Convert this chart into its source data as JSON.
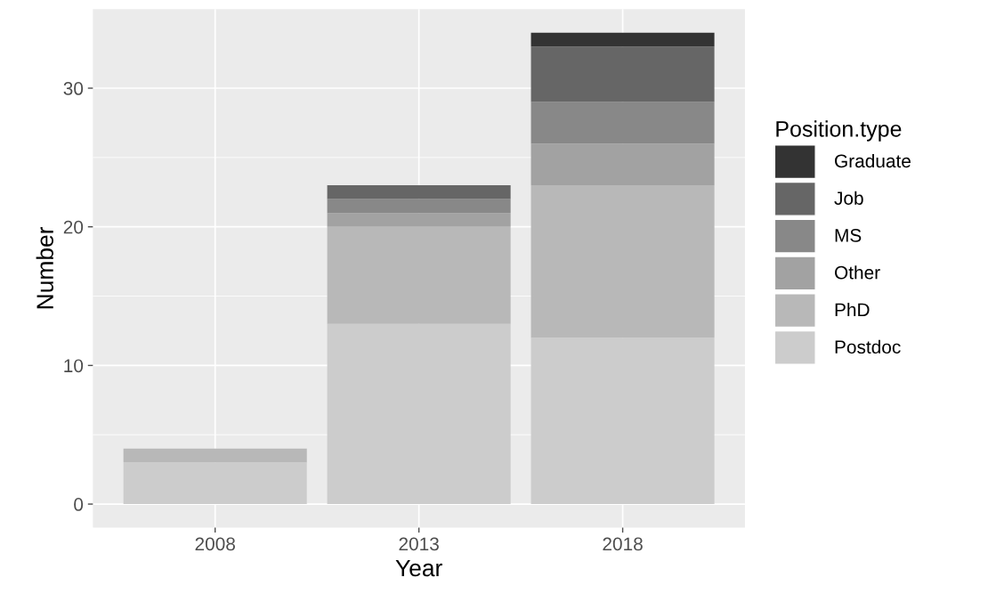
{
  "chart_data": {
    "type": "bar",
    "stacked": true,
    "xlabel": "Year",
    "ylabel": "Number",
    "legend_title": "Position.type",
    "legend": "right",
    "grid": true,
    "categories": [
      "2008",
      "2013",
      "2018"
    ],
    "series": [
      {
        "name": "Postdoc",
        "color": "#cccccc",
        "values": [
          3,
          13,
          12
        ]
      },
      {
        "name": "PhD",
        "color": "#b8b8b8",
        "values": [
          1,
          7,
          11
        ]
      },
      {
        "name": "Other",
        "color": "#a2a2a2",
        "values": [
          0,
          1,
          3
        ]
      },
      {
        "name": "MS",
        "color": "#888888",
        "values": [
          0,
          1,
          3
        ]
      },
      {
        "name": "Job",
        "color": "#666666",
        "values": [
          0,
          1,
          4
        ]
      },
      {
        "name": "Graduate",
        "color": "#333333",
        "values": [
          0,
          0,
          1
        ]
      }
    ],
    "ylim": [
      -1.7,
      35.7
    ],
    "yticks": [
      0,
      10,
      20,
      30
    ]
  }
}
